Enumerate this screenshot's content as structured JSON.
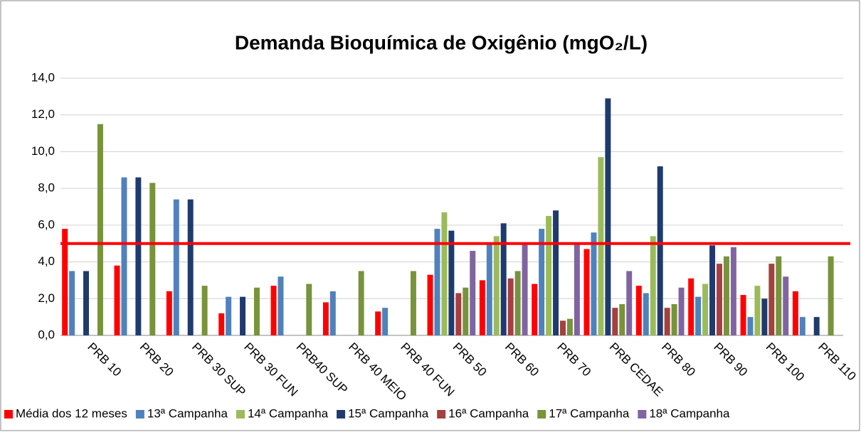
{
  "chart_data": {
    "type": "bar",
    "title": "Demanda Bioquímica de Oxigênio (mgO₂/L)",
    "categories": [
      "PRB 10",
      "PRB 20",
      "PRB 30 SUP",
      "PRB 30 FUN",
      "PRB40 SUP",
      "PRB 40 MEIO",
      "PRB 40 FUN",
      "PRB 50",
      "PRB 60",
      "PRB 70",
      "PRB CEDAE",
      "PRB 80",
      "PRB 90",
      "PRB 100",
      "PRB 110"
    ],
    "series": [
      {
        "name": "Média dos 12 meses",
        "color": "#ff0000",
        "values": [
          5.8,
          3.8,
          2.4,
          1.2,
          2.7,
          1.8,
          1.3,
          3.3,
          3.0,
          2.8,
          4.7,
          2.7,
          3.1,
          2.2,
          2.4
        ]
      },
      {
        "name": "13ª Campanha",
        "color": "#4f81bd",
        "values": [
          3.5,
          8.6,
          7.4,
          2.1,
          3.2,
          2.4,
          1.5,
          5.8,
          5.0,
          5.8,
          5.6,
          2.3,
          2.1,
          1.0,
          1.0
        ]
      },
      {
        "name": "14ª Campanha",
        "color": "#9bbb59",
        "values": [
          null,
          null,
          null,
          null,
          null,
          null,
          null,
          6.7,
          5.4,
          6.5,
          9.7,
          5.4,
          2.8,
          2.7,
          null
        ]
      },
      {
        "name": "15ª Campanha",
        "color": "#1f3b6e",
        "values": [
          3.5,
          8.6,
          7.4,
          2.1,
          null,
          null,
          null,
          5.7,
          6.1,
          6.8,
          12.9,
          9.2,
          4.9,
          2.0,
          1.0
        ]
      },
      {
        "name": "16ª Campanha",
        "color": "#a4403d",
        "values": [
          null,
          null,
          null,
          null,
          null,
          null,
          null,
          2.3,
          3.1,
          0.8,
          1.5,
          1.5,
          3.9,
          3.9,
          null
        ]
      },
      {
        "name": "17ª Campanha",
        "color": "#77933c",
        "values": [
          11.5,
          8.3,
          2.7,
          2.6,
          2.8,
          3.5,
          3.5,
          2.6,
          3.5,
          0.9,
          1.7,
          1.7,
          4.3,
          4.3,
          4.3
        ]
      },
      {
        "name": "18ª Campanha",
        "color": "#8064a2",
        "values": [
          null,
          null,
          null,
          null,
          null,
          null,
          null,
          4.6,
          5.0,
          5.0,
          3.5,
          2.6,
          4.8,
          3.2,
          null
        ]
      }
    ],
    "ylim": [
      0,
      14
    ],
    "yticks": [
      {
        "value": 0,
        "label": "0,0"
      },
      {
        "value": 2,
        "label": "2,0"
      },
      {
        "value": 4,
        "label": "4,0"
      },
      {
        "value": 6,
        "label": "6,0"
      },
      {
        "value": 8,
        "label": "8,0"
      },
      {
        "value": 10,
        "label": "10,0"
      },
      {
        "value": 12,
        "label": "12,0"
      },
      {
        "value": 14,
        "label": "14,0"
      }
    ],
    "reference_line": 5,
    "reference_color": "#ff0000",
    "grid": true,
    "legend": "bottom"
  }
}
